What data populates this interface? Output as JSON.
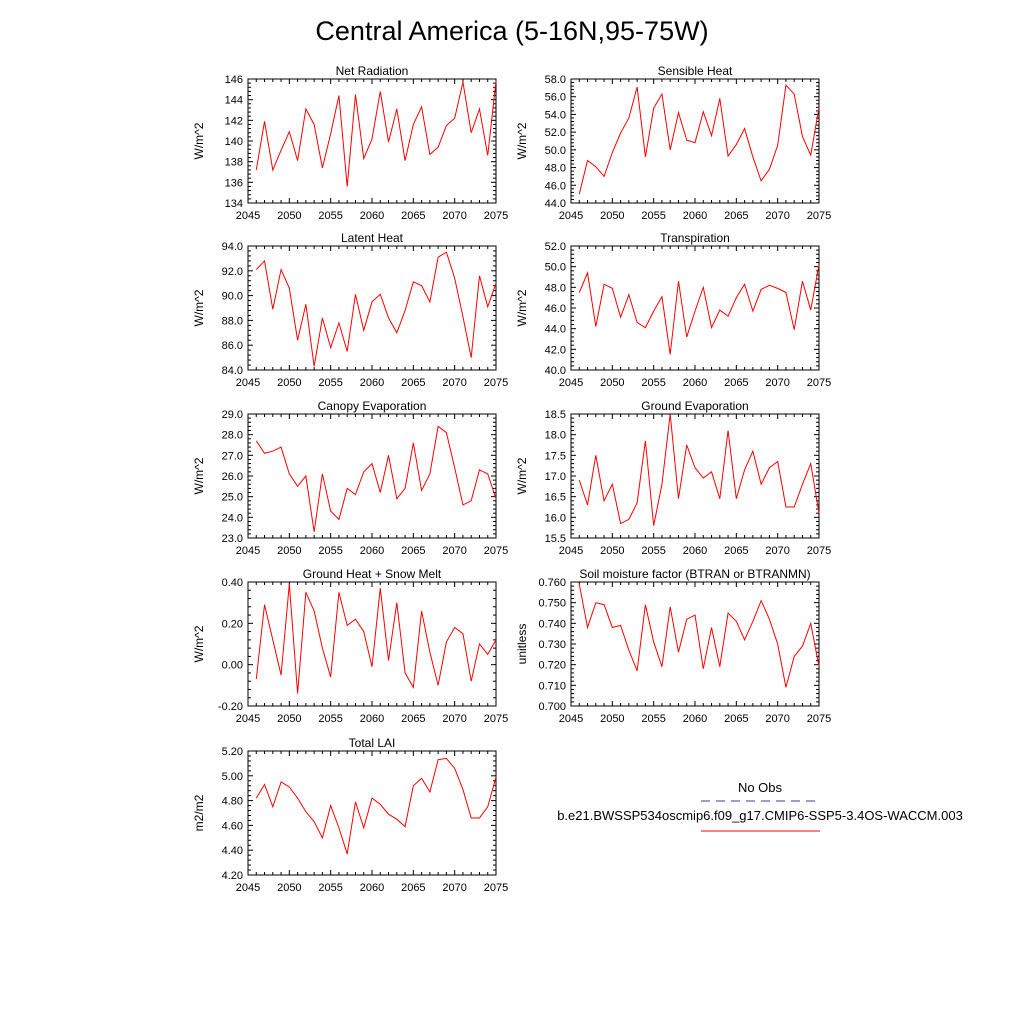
{
  "figure": {
    "title": "Central America (5-16N,95-75W)",
    "line_color": "#ff0000",
    "obs_color": "#3b3b9a"
  },
  "legend": {
    "obs_label": "No Obs",
    "case_label": "b.e21.BWSSP534oscmip6.f09_g17.CMIP6-SSP5-3.4OS-WACCM.003"
  },
  "chart_data": [
    {
      "type": "line",
      "title": "Net Radiation",
      "ylabel": "W/m^2",
      "xlim": [
        2045,
        2075
      ],
      "ylim": [
        134,
        146
      ],
      "xticks": [
        2045,
        2050,
        2055,
        2060,
        2065,
        2070,
        2075
      ],
      "yticks": [
        134,
        136,
        138,
        140,
        142,
        144,
        146
      ],
      "ydecimals": 0,
      "x": [
        2046,
        2047,
        2048,
        2049,
        2050,
        2051,
        2052,
        2053,
        2054,
        2055,
        2056,
        2057,
        2058,
        2059,
        2060,
        2061,
        2062,
        2063,
        2064,
        2065,
        2066,
        2067,
        2068,
        2069,
        2070,
        2071,
        2072,
        2073,
        2074,
        2075
      ],
      "series": [
        {
          "name": "b.e21.BWSSP534oscmip6.f09_g17.CMIP6-SSP5-3.4OS-WACCM.003",
          "values": [
            137.2,
            141.9,
            137.2,
            139.1,
            140.9,
            138.1,
            143.1,
            141.6,
            137.4,
            140.7,
            144.4,
            135.6,
            144.5,
            138.3,
            140.2,
            144.8,
            139.9,
            143.1,
            138.1,
            141.6,
            143.3,
            138.7,
            139.4,
            141.5,
            142.2,
            145.7,
            140.8,
            143.1,
            138.6,
            145.8
          ]
        }
      ]
    },
    {
      "type": "line",
      "title": "Sensible Heat",
      "ylabel": "W/m^2",
      "xlim": [
        2045,
        2075
      ],
      "ylim": [
        44,
        58
      ],
      "xticks": [
        2045,
        2050,
        2055,
        2060,
        2065,
        2070,
        2075
      ],
      "yticks": [
        44,
        46,
        48,
        50,
        52,
        54,
        56,
        58
      ],
      "ydecimals": 1,
      "x": [
        2046,
        2047,
        2048,
        2049,
        2050,
        2051,
        2052,
        2053,
        2054,
        2055,
        2056,
        2057,
        2058,
        2059,
        2060,
        2061,
        2062,
        2063,
        2064,
        2065,
        2066,
        2067,
        2068,
        2069,
        2070,
        2071,
        2072,
        2073,
        2074,
        2075
      ],
      "series": [
        {
          "name": "b.e21.BWSSP534oscmip6.f09_g17.CMIP6-SSP5-3.4OS-WACCM.003",
          "values": [
            45.0,
            48.8,
            48.1,
            47.0,
            49.7,
            51.9,
            53.6,
            57.1,
            49.2,
            54.7,
            56.3,
            50.0,
            54.2,
            51.1,
            50.8,
            54.3,
            51.6,
            55.8,
            49.3,
            50.6,
            52.4,
            49.2,
            46.5,
            47.8,
            50.5,
            57.3,
            56.3,
            51.5,
            49.4,
            54.8
          ]
        }
      ]
    },
    {
      "type": "line",
      "title": "Latent Heat",
      "ylabel": "W/m^2",
      "xlim": [
        2045,
        2075
      ],
      "ylim": [
        84,
        94
      ],
      "xticks": [
        2045,
        2050,
        2055,
        2060,
        2065,
        2070,
        2075
      ],
      "yticks": [
        84,
        86,
        88,
        90,
        92,
        94
      ],
      "ydecimals": 1,
      "x": [
        2046,
        2047,
        2048,
        2049,
        2050,
        2051,
        2052,
        2053,
        2054,
        2055,
        2056,
        2057,
        2058,
        2059,
        2060,
        2061,
        2062,
        2063,
        2064,
        2065,
        2066,
        2067,
        2068,
        2069,
        2070,
        2071,
        2072,
        2073,
        2074,
        2075
      ],
      "series": [
        {
          "name": "b.e21.BWSSP534oscmip6.f09_g17.CMIP6-SSP5-3.4OS-WACCM.003",
          "values": [
            92.1,
            92.8,
            88.9,
            92.1,
            90.6,
            86.4,
            89.3,
            84.3,
            88.2,
            85.8,
            87.8,
            85.5,
            90.1,
            87.2,
            89.5,
            90.1,
            88.2,
            87.0,
            88.8,
            91.1,
            90.8,
            89.5,
            93.1,
            93.5,
            91.4,
            88.3,
            85.0,
            91.6,
            89.1,
            91.0
          ]
        }
      ]
    },
    {
      "type": "line",
      "title": "Transpiration",
      "ylabel": "W/m^2",
      "xlim": [
        2045,
        2075
      ],
      "ylim": [
        40,
        52
      ],
      "xticks": [
        2045,
        2050,
        2055,
        2060,
        2065,
        2070,
        2075
      ],
      "yticks": [
        40,
        42,
        44,
        46,
        48,
        50,
        52
      ],
      "ydecimals": 1,
      "x": [
        2046,
        2047,
        2048,
        2049,
        2050,
        2051,
        2052,
        2053,
        2054,
        2055,
        2056,
        2057,
        2058,
        2059,
        2060,
        2061,
        2062,
        2063,
        2064,
        2065,
        2066,
        2067,
        2068,
        2069,
        2070,
        2071,
        2072,
        2073,
        2074,
        2075
      ],
      "series": [
        {
          "name": "b.e21.BWSSP534oscmip6.f09_g17.CMIP6-SSP5-3.4OS-WACCM.003",
          "values": [
            47.5,
            49.4,
            44.2,
            48.3,
            47.9,
            45.1,
            47.3,
            44.6,
            44.1,
            45.7,
            47.1,
            41.5,
            48.6,
            43.2,
            45.7,
            48.0,
            44.1,
            45.8,
            45.2,
            47.0,
            48.3,
            45.7,
            47.8,
            48.2,
            47.9,
            47.5,
            43.9,
            48.6,
            45.8,
            50.2
          ]
        }
      ]
    },
    {
      "type": "line",
      "title": "Canopy Evaporation",
      "ylabel": "W/m^2",
      "xlim": [
        2045,
        2075
      ],
      "ylim": [
        23,
        29
      ],
      "xticks": [
        2045,
        2050,
        2055,
        2060,
        2065,
        2070,
        2075
      ],
      "yticks": [
        23,
        24,
        25,
        26,
        27,
        28,
        29
      ],
      "ydecimals": 1,
      "x": [
        2046,
        2047,
        2048,
        2049,
        2050,
        2051,
        2052,
        2053,
        2054,
        2055,
        2056,
        2057,
        2058,
        2059,
        2060,
        2061,
        2062,
        2063,
        2064,
        2065,
        2066,
        2067,
        2068,
        2069,
        2070,
        2071,
        2072,
        2073,
        2074,
        2075
      ],
      "series": [
        {
          "name": "b.e21.BWSSP534oscmip6.f09_g17.CMIP6-SSP5-3.4OS-WACCM.003",
          "values": [
            27.7,
            27.1,
            27.2,
            27.4,
            26.1,
            25.5,
            26.0,
            23.3,
            26.1,
            24.3,
            23.9,
            25.4,
            25.1,
            26.2,
            26.6,
            25.2,
            27.0,
            24.9,
            25.4,
            27.6,
            25.3,
            26.1,
            28.4,
            28.1,
            26.4,
            24.6,
            24.8,
            26.3,
            26.1,
            24.9
          ]
        }
      ]
    },
    {
      "type": "line",
      "title": "Ground Evaporation",
      "ylabel": "W/m^2",
      "xlim": [
        2045,
        2075
      ],
      "ylim": [
        15.5,
        18.5
      ],
      "xticks": [
        2045,
        2050,
        2055,
        2060,
        2065,
        2070,
        2075
      ],
      "yticks": [
        15.5,
        16.0,
        16.5,
        17.0,
        17.5,
        18.0,
        18.5
      ],
      "ydecimals": 1,
      "x": [
        2046,
        2047,
        2048,
        2049,
        2050,
        2051,
        2052,
        2053,
        2054,
        2055,
        2056,
        2057,
        2058,
        2059,
        2060,
        2061,
        2062,
        2063,
        2064,
        2065,
        2066,
        2067,
        2068,
        2069,
        2070,
        2071,
        2072,
        2073,
        2074,
        2075
      ],
      "series": [
        {
          "name": "b.e21.BWSSP534oscmip6.f09_g17.CMIP6-SSP5-3.4OS-WACCM.003",
          "values": [
            16.9,
            16.3,
            17.5,
            16.4,
            16.8,
            15.85,
            15.95,
            16.35,
            17.85,
            15.8,
            16.8,
            18.5,
            16.45,
            17.75,
            17.2,
            16.95,
            17.1,
            16.45,
            18.1,
            16.45,
            17.15,
            17.6,
            16.8,
            17.2,
            17.35,
            16.25,
            16.25,
            16.8,
            17.3,
            16.1
          ]
        }
      ]
    },
    {
      "type": "line",
      "title": "Ground Heat + Snow Melt",
      "ylabel": "W/m^2",
      "xlim": [
        2045,
        2075
      ],
      "ylim": [
        -0.2,
        0.4
      ],
      "xticks": [
        2045,
        2050,
        2055,
        2060,
        2065,
        2070,
        2075
      ],
      "yticks": [
        -0.2,
        0.0,
        0.2,
        0.4
      ],
      "ydecimals": 2,
      "x": [
        2046,
        2047,
        2048,
        2049,
        2050,
        2051,
        2052,
        2053,
        2054,
        2055,
        2056,
        2057,
        2058,
        2059,
        2060,
        2061,
        2062,
        2063,
        2064,
        2065,
        2066,
        2067,
        2068,
        2069,
        2070,
        2071,
        2072,
        2073,
        2074,
        2075
      ],
      "series": [
        {
          "name": "b.e21.BWSSP534oscmip6.f09_g17.CMIP6-SSP5-3.4OS-WACCM.003",
          "values": [
            -0.07,
            0.29,
            0.12,
            -0.05,
            0.39,
            -0.14,
            0.35,
            0.26,
            0.08,
            -0.06,
            0.35,
            0.19,
            0.22,
            0.16,
            -0.01,
            0.37,
            0.02,
            0.3,
            -0.04,
            -0.11,
            0.26,
            0.06,
            -0.1,
            0.11,
            0.18,
            0.15,
            -0.08,
            0.1,
            0.05,
            0.12
          ]
        }
      ]
    },
    {
      "type": "line",
      "title": "Soil moisture factor (BTRAN or BTRANMN)",
      "ylabel": "unitless",
      "xlim": [
        2045,
        2075
      ],
      "ylim": [
        0.7,
        0.76
      ],
      "xticks": [
        2045,
        2050,
        2055,
        2060,
        2065,
        2070,
        2075
      ],
      "yticks": [
        0.7,
        0.71,
        0.72,
        0.73,
        0.74,
        0.75,
        0.76
      ],
      "ydecimals": 3,
      "x": [
        2046,
        2047,
        2048,
        2049,
        2050,
        2051,
        2052,
        2053,
        2054,
        2055,
        2056,
        2057,
        2058,
        2059,
        2060,
        2061,
        2062,
        2063,
        2064,
        2065,
        2066,
        2067,
        2068,
        2069,
        2070,
        2071,
        2072,
        2073,
        2074,
        2075
      ],
      "series": [
        {
          "name": "b.e21.BWSSP534oscmip6.f09_g17.CMIP6-SSP5-3.4OS-WACCM.003",
          "values": [
            0.759,
            0.738,
            0.75,
            0.749,
            0.738,
            0.739,
            0.727,
            0.717,
            0.749,
            0.731,
            0.719,
            0.748,
            0.726,
            0.742,
            0.744,
            0.718,
            0.738,
            0.719,
            0.745,
            0.741,
            0.732,
            0.741,
            0.751,
            0.742,
            0.73,
            0.709,
            0.724,
            0.729,
            0.74,
            0.719
          ]
        }
      ]
    },
    {
      "type": "line",
      "title": "Total LAI",
      "ylabel": "m2/m2",
      "xlim": [
        2045,
        2075
      ],
      "ylim": [
        4.2,
        5.2
      ],
      "xticks": [
        2045,
        2050,
        2055,
        2060,
        2065,
        2070,
        2075
      ],
      "yticks": [
        4.2,
        4.4,
        4.6,
        4.8,
        5.0,
        5.2
      ],
      "ydecimals": 2,
      "x": [
        2046,
        2047,
        2048,
        2049,
        2050,
        2051,
        2052,
        2053,
        2054,
        2055,
        2056,
        2057,
        2058,
        2059,
        2060,
        2061,
        2062,
        2063,
        2064,
        2065,
        2066,
        2067,
        2068,
        2069,
        2070,
        2071,
        2072,
        2073,
        2074,
        2075
      ],
      "series": [
        {
          "name": "b.e21.BWSSP534oscmip6.f09_g17.CMIP6-SSP5-3.4OS-WACCM.003",
          "values": [
            4.82,
            4.93,
            4.75,
            4.95,
            4.91,
            4.82,
            4.71,
            4.63,
            4.5,
            4.76,
            4.58,
            4.37,
            4.79,
            4.58,
            4.82,
            4.77,
            4.69,
            4.65,
            4.59,
            4.92,
            4.98,
            4.87,
            5.13,
            5.14,
            5.06,
            4.89,
            4.66,
            4.66,
            4.75,
            4.99
          ]
        }
      ]
    }
  ]
}
